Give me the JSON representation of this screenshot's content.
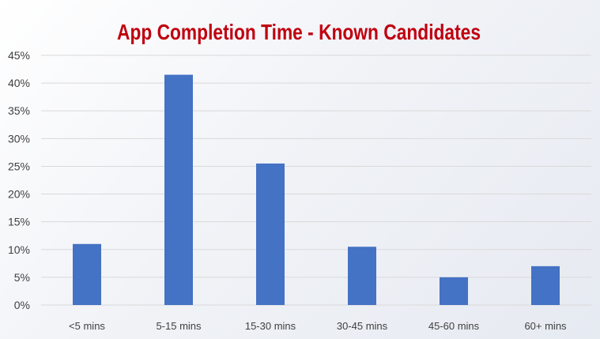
{
  "chart_data": {
    "type": "bar",
    "title": "App Completion Time - Known Candidates",
    "categories": [
      "<5 mins",
      "5-15 mins",
      "15-30 mins",
      "30-45 mins",
      "45-60 mins",
      "60+ mins"
    ],
    "values": [
      11,
      41.5,
      25.5,
      10.5,
      5,
      7
    ],
    "ylim": [
      0,
      45
    ],
    "yticks": [
      "0%",
      "5%",
      "10%",
      "15%",
      "20%",
      "25%",
      "30%",
      "35%",
      "40%",
      "45%"
    ],
    "grid": true,
    "bar_color": "#4472c4",
    "title_color": "#c0000f"
  }
}
